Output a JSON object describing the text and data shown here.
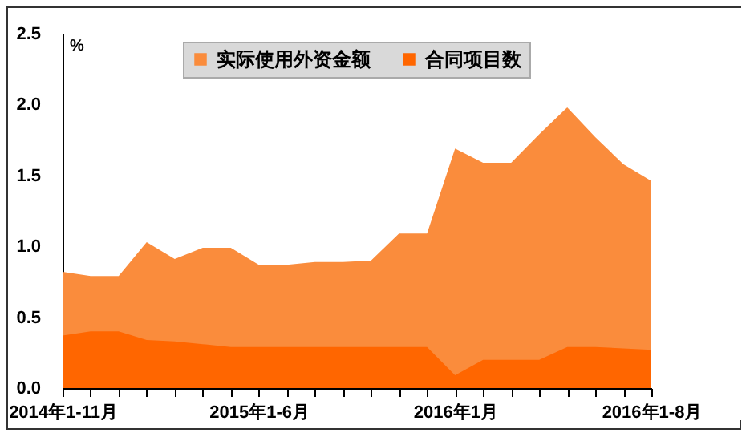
{
  "chart_data": {
    "type": "area",
    "ylabel": "%",
    "legend": "top",
    "grid": false,
    "categories": [
      "2014年1-11月",
      null,
      null,
      null,
      null,
      null,
      null,
      "2015年1-6月",
      null,
      null,
      null,
      null,
      null,
      null,
      "2016年1月",
      null,
      null,
      null,
      null,
      null,
      null,
      "2016年1-8月"
    ],
    "ylim": [
      0,
      2.5
    ],
    "yticks": [
      {
        "value": 0,
        "label": "0.0"
      },
      {
        "value": 0.5,
        "label": "0.5"
      },
      {
        "value": 1,
        "label": "1.0"
      },
      {
        "value": 1.5,
        "label": "1.5"
      },
      {
        "value": 2,
        "label": "2.0"
      },
      {
        "value": 2.5,
        "label": "2.5"
      }
    ],
    "series": [
      {
        "name": "实际使用外资金额",
        "color": "#fa8c3c",
        "values": [
          0.82,
          0.79,
          0.79,
          1.03,
          0.91,
          0.99,
          0.99,
          0.87,
          0.87,
          0.89,
          0.89,
          0.9,
          1.09,
          1.09,
          1.69,
          1.59,
          1.59,
          1.79,
          1.98,
          1.77,
          1.58,
          1.46
        ]
      },
      {
        "name": "合同项目数",
        "color": "#ff6600",
        "values": [
          0.37,
          0.4,
          0.4,
          0.34,
          0.33,
          0.31,
          0.29,
          0.29,
          0.29,
          0.29,
          0.29,
          0.29,
          0.29,
          0.29,
          0.09,
          0.2,
          0.2,
          0.2,
          0.29,
          0.29,
          0.28,
          0.27
        ]
      }
    ]
  }
}
